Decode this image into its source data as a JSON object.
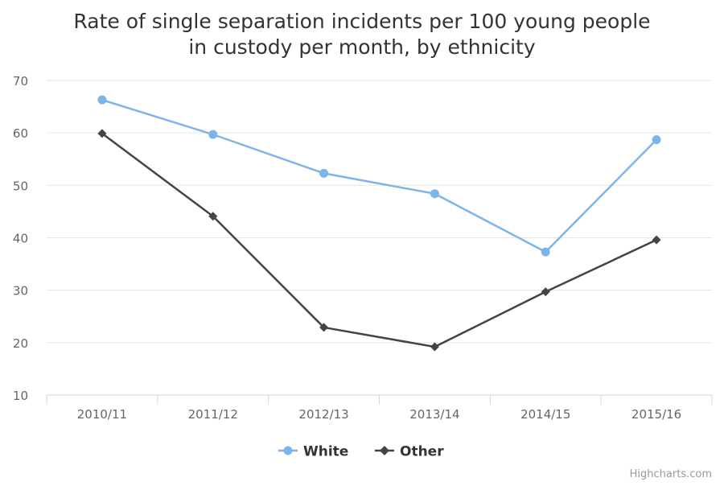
{
  "chart_data": {
    "type": "line",
    "title_line1": "Rate of single separation incidents per 100 young people",
    "title_line2": "in custody per month, by ethnicity",
    "xlabel": "",
    "ylabel": "",
    "categories": [
      "2010/11",
      "2011/12",
      "2012/13",
      "2013/14",
      "2014/15",
      "2015/16"
    ],
    "ylim": [
      10,
      70
    ],
    "yticks": [
      10,
      20,
      30,
      40,
      50,
      60,
      70
    ],
    "grid": true,
    "legend_placement": "bottom-center",
    "series": [
      {
        "name": "White",
        "color": "#7cb5ec",
        "marker": "circle",
        "values": [
          66.3,
          59.7,
          52.3,
          48.4,
          37.3,
          58.7
        ]
      },
      {
        "name": "Other",
        "color": "#434348",
        "marker": "diamond",
        "values": [
          59.9,
          44.1,
          22.9,
          19.2,
          29.7,
          39.6
        ]
      }
    ],
    "credits": "Highcharts.com"
  }
}
